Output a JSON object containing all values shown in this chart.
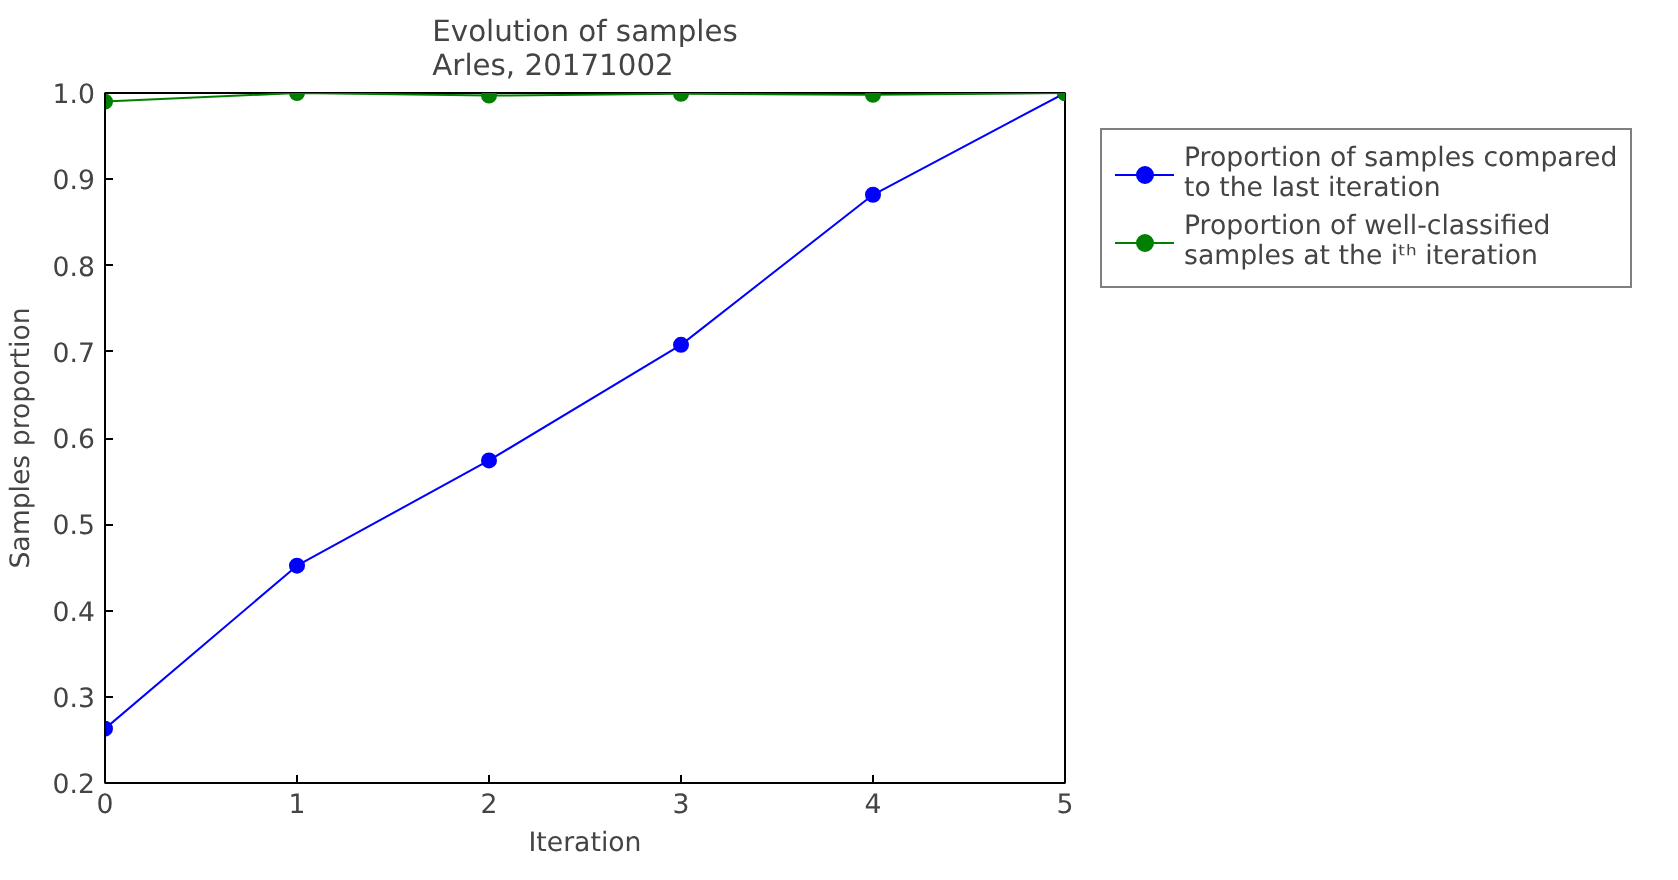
{
  "chart_data": {
    "type": "line",
    "title": "Evolution of samples\nArles, 20171002",
    "xlabel": "Iteration",
    "ylabel": "Samples proportion",
    "x": [
      0,
      1,
      2,
      3,
      4,
      5
    ],
    "xlim": [
      0,
      5
    ],
    "xticks": [
      0,
      1,
      2,
      3,
      4,
      5
    ],
    "ylim": [
      0.2,
      1.0
    ],
    "yticks": [
      {
        "value": 0.2,
        "label": "0.2"
      },
      {
        "value": 0.3,
        "label": "0.3"
      },
      {
        "value": 0.4,
        "label": "0.4"
      },
      {
        "value": 0.5,
        "label": "0.5"
      },
      {
        "value": 0.6,
        "label": "0.6"
      },
      {
        "value": 0.7,
        "label": "0.7"
      },
      {
        "value": 0.8,
        "label": "0.8"
      },
      {
        "value": 0.9,
        "label": "0.9"
      },
      {
        "value": 1.0,
        "label": "1.0"
      }
    ],
    "series": [
      {
        "name": "Proportion of samples compared\nto the last iteration",
        "color": "#0000ff",
        "values": [
          0.263,
          0.452,
          0.574,
          0.708,
          0.882,
          1.0
        ]
      },
      {
        "name": "Proportion of well-classified\nsamples at the iᵗʰ iteration",
        "color": "#007f00",
        "values": [
          0.99,
          1.0,
          0.997,
          0.999,
          0.998,
          1.0
        ]
      }
    ],
    "marker": "circle",
    "legend": "right",
    "grid": false
  }
}
